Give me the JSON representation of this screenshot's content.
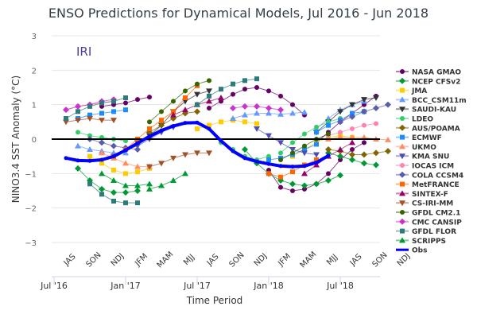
{
  "chart_data": {
    "type": "line",
    "title": "ENSO Predictions for Dynamical Models, Jul 2016 - Jun 2018",
    "watermark": "IRI",
    "xlabel": "Time Period",
    "ylabel": "NINO3.4 SST Anomaly (°C)",
    "ylim": [
      -3,
      3
    ],
    "yticks": [
      "3",
      "2",
      "1",
      "0",
      "−1",
      "−2",
      "−3"
    ],
    "ytick_values": [
      3,
      2,
      1,
      0,
      -1,
      -2,
      -3
    ],
    "season_labels": [
      "JAS",
      "SON",
      "NDJ",
      "JFM",
      "MAM",
      "MJJ",
      "JAS",
      "SON",
      "NDJ",
      "JFM",
      "MAM",
      "MJJ",
      "JAS",
      "SON",
      "NDJ"
    ],
    "season_month_index": [
      1,
      3,
      5,
      7,
      9,
      11,
      13,
      15,
      17,
      19,
      21,
      23,
      25,
      27,
      29
    ],
    "date_labels": [
      "Jul '16",
      "Jan '17",
      "Jul '17",
      "Jan '18",
      "Jul '18"
    ],
    "date_month_index": [
      0,
      6,
      12,
      18,
      24
    ],
    "x_month_range": [
      0,
      30
    ],
    "month_index_note": "0 = Jul 2016",
    "grid": true,
    "legend_position": "right",
    "zero_line": true,
    "obs": {
      "name": "Obs",
      "color": "#0000ff",
      "start": 1,
      "values": [
        -0.55,
        -0.62,
        -0.63,
        -0.6,
        -0.5,
        -0.32,
        -0.12,
        0.08,
        0.25,
        0.38,
        0.47,
        0.48,
        0.3,
        -0.05,
        -0.35,
        -0.55,
        -0.65,
        -0.72,
        -0.78,
        -0.8,
        -0.78,
        -0.68,
        -0.48
      ]
    },
    "series": [
      {
        "name": "NASA GMAO",
        "color": "#660066",
        "marker": "circle",
        "runs": [
          {
            "start": 4,
            "values": [
              0.95,
              1.0,
              1.05,
              1.15,
              1.22
            ]
          },
          {
            "start": 13,
            "values": [
              0.9,
              1.1,
              1.3,
              1.45,
              1.5,
              1.4,
              1.25,
              1.0,
              0.7
            ]
          },
          {
            "start": 18,
            "values": [
              -0.9,
              -1.4,
              -1.5,
              -1.45,
              -1.3,
              -1.0,
              -0.6,
              -0.3,
              -0.1
            ]
          },
          {
            "start": 22,
            "values": [
              -0.1,
              0.2,
              0.5,
              0.75,
              1.0,
              1.25
            ]
          }
        ]
      },
      {
        "name": "NCEP CFSv2",
        "color": "#009933",
        "marker": "diamond",
        "runs": [
          {
            "start": 2,
            "values": [
              -0.85,
              -1.2,
              -1.45,
              -1.55,
              -1.55,
              -1.5
            ]
          },
          {
            "start": 16,
            "values": [
              -0.3,
              -0.7,
              -1.0,
              -1.2,
              -1.3,
              -1.35,
              -1.3,
              -1.2,
              -1.05
            ]
          },
          {
            "start": 23,
            "values": [
              -0.4,
              -0.5,
              -0.6,
              -0.7,
              -0.75
            ]
          }
        ]
      },
      {
        "name": "JMA",
        "color": "#ffcc00",
        "marker": "square",
        "runs": [
          {
            "start": 3,
            "values": [
              -0.5,
              -0.7,
              -0.9,
              -1.0,
              -0.95,
              -0.85
            ]
          },
          {
            "start": 12,
            "values": [
              0.3,
              0.4,
              0.5,
              0.55,
              0.5,
              0.45
            ]
          },
          {
            "start": 20,
            "values": [
              -0.5,
              -0.3,
              -0.1,
              0.05,
              0.1,
              0.05
            ]
          }
        ]
      },
      {
        "name": "BCC_CSM11m",
        "color": "#6699ff",
        "marker": "triangle",
        "runs": [
          {
            "start": 2,
            "values": [
              -0.2,
              -0.3,
              -0.35,
              -0.4,
              -0.4
            ]
          },
          {
            "start": 15,
            "values": [
              0.6,
              0.7,
              0.75,
              0.75,
              0.72,
              0.75,
              0.78
            ]
          },
          {
            "start": 22,
            "values": [
              0.3,
              0.6,
              0.85,
              1.0,
              1.1
            ]
          }
        ]
      },
      {
        "name": "SAUDI-KAU",
        "color": "#333333",
        "marker": "triangle-down",
        "runs": [
          {
            "start": 5,
            "values": [
              -0.5,
              -0.3,
              -0.1,
              0.1,
              0.4,
              0.8,
              1.1,
              1.3,
              1.4
            ]
          },
          {
            "start": 22,
            "values": [
              0.2,
              0.5,
              0.8,
              1.0,
              1.15,
              1.2
            ]
          }
        ]
      },
      {
        "name": "LDEO",
        "color": "#33cc66",
        "marker": "circle",
        "runs": [
          {
            "start": 2,
            "values": [
              0.2,
              0.1,
              0.05,
              0.0,
              -0.05
            ]
          },
          {
            "start": 14,
            "values": [
              -0.1,
              -0.3,
              -0.5,
              -0.6,
              -0.5
            ]
          },
          {
            "start": 19,
            "values": [
              -0.4,
              -0.1,
              0.15,
              0.35,
              0.5,
              0.6
            ]
          }
        ]
      },
      {
        "name": "AUS/POAMA",
        "color": "#806600",
        "marker": "diamond",
        "runs": [
          {
            "start": 8,
            "values": [
              0.2,
              0.4,
              0.6,
              0.75,
              0.8
            ]
          },
          {
            "start": 23,
            "values": [
              -0.3,
              -0.35,
              -0.45,
              -0.45,
              -0.4,
              -0.35
            ]
          }
        ]
      },
      {
        "name": "ECMWF",
        "color": "#1a8cff",
        "marker": "square",
        "runs": [
          {
            "start": 2,
            "values": [
              0.6,
              0.7,
              0.75,
              0.8,
              0.85
            ]
          },
          {
            "start": 18,
            "values": [
              -0.6,
              -0.55,
              -0.45,
              -0.3,
              -0.15
            ]
          },
          {
            "start": 22,
            "values": [
              0.2,
              0.4,
              0.55,
              0.75,
              0.8
            ]
          }
        ]
      },
      {
        "name": "UKMO",
        "color": "#ff8c66",
        "marker": "triangle",
        "runs": [
          {
            "start": 4,
            "values": [
              -0.4,
              -0.55,
              -0.7,
              -0.8,
              -0.8
            ]
          },
          {
            "start": 23,
            "values": [
              0.0,
              0.05,
              0.05,
              0.05,
              0.0,
              -0.02
            ]
          }
        ]
      },
      {
        "name": "KMA SNU",
        "color": "#4d4db3",
        "marker": "triangle-down",
        "runs": [
          {
            "start": 6,
            "values": [
              -0.3,
              -0.2,
              0.0,
              0.2,
              0.35
            ]
          },
          {
            "start": 17,
            "values": [
              0.3,
              0.1,
              -0.1,
              -0.3,
              -0.4,
              -0.45
            ]
          }
        ]
      },
      {
        "name": "IOCAS ICM",
        "color": "#ff80b3",
        "marker": "circle",
        "runs": [
          {
            "start": 1,
            "values": [
              0.85,
              0.95,
              1.0,
              1.05,
              1.1
            ]
          },
          {
            "start": 23,
            "values": [
              0.1,
              0.2,
              0.3,
              0.4,
              0.45
            ]
          }
        ]
      },
      {
        "name": "COLA CCSM4",
        "color": "#5c5cad",
        "marker": "diamond",
        "runs": [
          {
            "start": 3,
            "values": [
              0.0,
              -0.1,
              -0.2,
              -0.25,
              -0.3
            ]
          },
          {
            "start": 24,
            "values": [
              0.5,
              0.65,
              0.8,
              0.9,
              1.0
            ]
          }
        ]
      },
      {
        "name": "MetFRANCE",
        "color": "#ff6600",
        "marker": "square",
        "runs": [
          {
            "start": 5,
            "values": [
              -0.5,
              -0.3,
              0.0,
              0.3,
              0.55,
              0.8,
              1.2,
              1.55
            ]
          },
          {
            "start": 18,
            "values": [
              -1.0,
              -1.1,
              -0.95,
              -0.75,
              -0.6
            ]
          }
        ]
      },
      {
        "name": "SINTEX-F",
        "color": "#990066",
        "marker": "triangle",
        "runs": [
          {
            "start": 10,
            "values": [
              0.7,
              0.85,
              1.0,
              1.1,
              1.2
            ]
          },
          {
            "start": 21,
            "values": [
              -1.0,
              -0.75,
              -0.5,
              -0.3,
              -0.1
            ]
          }
        ]
      },
      {
        "name": "CS-IRI-MM",
        "color": "#a0522d",
        "marker": "triangle-down",
        "runs": [
          {
            "start": 1,
            "values": [
              0.5,
              0.55,
              0.6,
              0.55,
              0.55
            ]
          },
          {
            "start": 8,
            "values": [
              -0.8,
              -0.7,
              -0.55,
              -0.45,
              -0.4,
              -0.4
            ]
          }
        ]
      },
      {
        "name": "GFDL CM2.1",
        "color": "#336600",
        "marker": "circle",
        "runs": [
          {
            "start": 8,
            "values": [
              0.5,
              0.8,
              1.1,
              1.4,
              1.6,
              1.7
            ]
          },
          {
            "start": 19,
            "values": [
              -0.6,
              -0.4,
              -0.2,
              0.0,
              0.15
            ]
          }
        ]
      },
      {
        "name": "CMC CANSIP",
        "color": "#cc33cc",
        "marker": "diamond",
        "runs": [
          {
            "start": 1,
            "values": [
              0.85,
              0.95,
              1.0,
              1.1,
              1.15
            ]
          },
          {
            "start": 15,
            "values": [
              0.9,
              0.95,
              0.95,
              0.9,
              0.85
            ]
          }
        ]
      },
      {
        "name": "GFDL FLOR",
        "color": "#2e7b7b",
        "marker": "square",
        "runs": [
          {
            "start": 1,
            "values": [
              0.6,
              0.8,
              0.95,
              1.05,
              1.1,
              1.2
            ]
          },
          {
            "start": 12,
            "values": [
              1.0,
              1.25,
              1.45,
              1.6,
              1.7,
              1.75
            ]
          },
          {
            "start": 3,
            "values": [
              -1.3,
              -1.6,
              -1.8,
              -1.85,
              -1.85
            ]
          }
        ]
      },
      {
        "name": "SCRIPPS",
        "color": "#009933",
        "marker": "triangle",
        "runs": [
          {
            "start": 4,
            "values": [
              -1.0,
              -1.2,
              -1.35,
              -1.35,
              -1.3
            ]
          },
          {
            "start": 8,
            "values": [
              -1.45,
              -1.35,
              -1.2,
              -1.0
            ]
          }
        ]
      }
    ]
  }
}
